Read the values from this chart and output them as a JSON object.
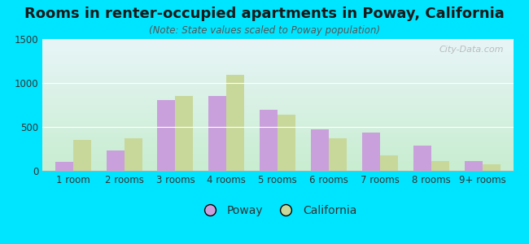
{
  "title": "Rooms in renter-occupied apartments in Poway, California",
  "subtitle": "(Note: State values scaled to Poway population)",
  "categories": [
    "1 room",
    "2 rooms",
    "3 rooms",
    "4 rooms",
    "5 rooms",
    "6 rooms",
    "7 rooms",
    "8 rooms",
    "9+ rooms"
  ],
  "poway_values": [
    100,
    230,
    810,
    855,
    690,
    470,
    435,
    290,
    115
  ],
  "california_values": [
    350,
    375,
    850,
    1090,
    640,
    375,
    175,
    110,
    75
  ],
  "poway_color": "#c9a0dc",
  "california_color": "#c8d89a",
  "bg_outer": "#00e5ff",
  "bg_chart_topleft": "#d4f0d8",
  "bg_chart_topright": "#e8f5f8",
  "bg_chart_bottom": "#c8edd0",
  "ylim": [
    0,
    1500
  ],
  "yticks": [
    0,
    500,
    1000,
    1500
  ],
  "title_fontsize": 13,
  "subtitle_fontsize": 8.5,
  "legend_fontsize": 10,
  "axis_fontsize": 8.5,
  "watermark_text": "City-Data.com"
}
